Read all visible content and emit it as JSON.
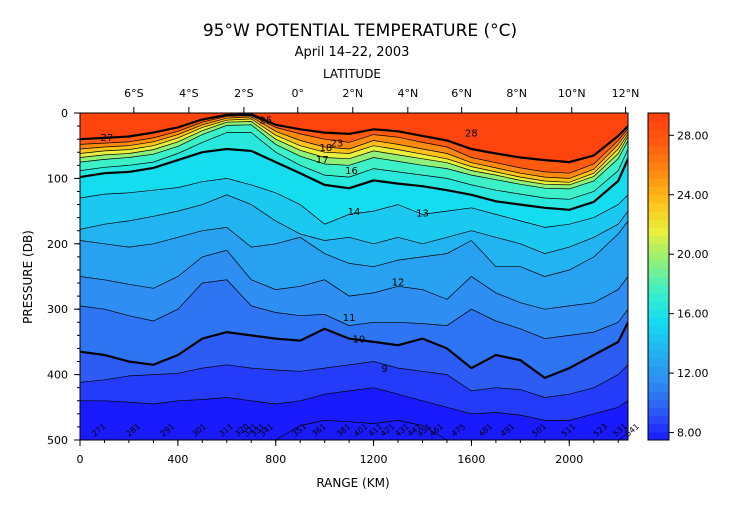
{
  "chart_data": {
    "type": "heatmap",
    "title": "95°W POTENTIAL TEMPERATURE (°C)",
    "subtitle": "April 14–22, 2003",
    "top_axis_label": "LATITUDE",
    "xlabel": "RANGE (KM)",
    "ylabel": "PRESSURE (DB)",
    "xlim": [
      0,
      2240
    ],
    "ylim": [
      500,
      0
    ],
    "x_ticks": [
      0,
      400,
      800,
      1200,
      1600,
      2000
    ],
    "y_ticks": [
      0,
      100,
      200,
      300,
      400,
      500
    ],
    "latitude_ticks": [
      {
        "label": "6°S",
        "km": 220
      },
      {
        "label": "4°S",
        "km": 445
      },
      {
        "label": "2°S",
        "km": 670
      },
      {
        "label": "0°",
        "km": 890
      },
      {
        "label": "2°N",
        "km": 1115
      },
      {
        "label": "4°N",
        "km": 1340
      },
      {
        "label": "6°N",
        "km": 1560
      },
      {
        "label": "8°N",
        "km": 1785
      },
      {
        "label": "10°N",
        "km": 2010
      },
      {
        "label": "12°N",
        "km": 2230
      }
    ],
    "colorbar": {
      "min": 7.5,
      "max": 29.5,
      "ticks": [
        "8.00",
        "12.00",
        "16.00",
        "20.00",
        "24.00",
        "28.00"
      ],
      "colors": [
        "#1a1aff",
        "#2d5cf5",
        "#2e8ef2",
        "#22b4f0",
        "#14ddf0",
        "#3cf0c8",
        "#8ff07a",
        "#e8f03c",
        "#ffc21a",
        "#ff8a10",
        "#ff5a10",
        "#ff3c0c"
      ]
    },
    "profile_km": [
      0,
      100,
      200,
      300,
      400,
      500,
      600,
      700,
      800,
      900,
      1000,
      1100,
      1200,
      1300,
      1400,
      1500,
      1600,
      1700,
      1800,
      1900,
      2000,
      2100,
      2200,
      2240
    ],
    "surface_layer": [
      {
        "temp": 28,
        "depths": [
          40,
          38,
          36,
          30,
          22,
          10,
          3,
          2,
          18,
          25,
          30,
          32,
          25,
          28,
          35,
          42,
          55,
          62,
          68,
          72,
          75,
          65,
          35,
          20
        ]
      },
      {
        "temp": 26,
        "depths": [
          48,
          46,
          44,
          38,
          28,
          14,
          5,
          4,
          22,
          32,
          40,
          45,
          33,
          37,
          45,
          52,
          68,
          76,
          84,
          90,
          92,
          78,
          42,
          24
        ]
      },
      {
        "temp": 24,
        "depths": [
          55,
          52,
          50,
          44,
          33,
          18,
          8,
          6,
          28,
          42,
          52,
          55,
          42,
          48,
          55,
          62,
          76,
          84,
          92,
          98,
          100,
          86,
          48,
          28
        ]
      },
      {
        "temp": 22,
        "depths": [
          62,
          58,
          56,
          50,
          38,
          22,
          11,
          9,
          34,
          50,
          60,
          62,
          50,
          56,
          63,
          70,
          82,
          90,
          98,
          104,
          106,
          92,
          55,
          32
        ]
      },
      {
        "temp": 20,
        "depths": [
          68,
          64,
          62,
          56,
          44,
          27,
          14,
          13,
          40,
          57,
          68,
          70,
          58,
          64,
          70,
          76,
          88,
          95,
          103,
          109,
          110,
          97,
          62,
          36
        ]
      },
      {
        "temp": 18,
        "depths": [
          75,
          71,
          68,
          63,
          51,
          33,
          19,
          18,
          48,
          66,
          78,
          80,
          68,
          74,
          80,
          85,
          95,
          102,
          109,
          115,
          116,
          104,
          70,
          42
        ]
      },
      {
        "temp": 17,
        "depths": [
          88,
          83,
          80,
          75,
          62,
          45,
          30,
          30,
          60,
          80,
          95,
          98,
          85,
          90,
          95,
          100,
          110,
          118,
          124,
          130,
          132,
          120,
          88,
          55
        ]
      },
      {
        "temp": 16,
        "depths": [
          98,
          92,
          90,
          84,
          72,
          60,
          55,
          58,
          75,
          92,
          110,
          115,
          103,
          108,
          112,
          118,
          125,
          135,
          140,
          145,
          148,
          136,
          104,
          70
        ]
      }
    ],
    "isotherms": [
      {
        "temp": 15,
        "depths": [
          130,
          124,
          122,
          118,
          114,
          105,
          100,
          110,
          122,
          140,
          170,
          155,
          150,
          140,
          155,
          150,
          145,
          155,
          165,
          175,
          170,
          160,
          140,
          125
        ]
      },
      {
        "temp": 14,
        "depths": [
          178,
          170,
          165,
          158,
          150,
          140,
          125,
          140,
          165,
          185,
          195,
          190,
          200,
          190,
          200,
          190,
          180,
          190,
          200,
          215,
          205,
          190,
          170,
          150
        ]
      },
      {
        "temp": 13,
        "depths": [
          195,
          200,
          205,
          200,
          190,
          180,
          175,
          205,
          200,
          190,
          215,
          230,
          235,
          225,
          220,
          215,
          195,
          235,
          235,
          250,
          240,
          220,
          185,
          165
        ]
      },
      {
        "temp": 12,
        "depths": [
          250,
          255,
          262,
          268,
          250,
          220,
          210,
          255,
          270,
          265,
          255,
          280,
          275,
          265,
          270,
          285,
          250,
          275,
          290,
          300,
          295,
          290,
          270,
          250
        ]
      },
      {
        "temp": 11,
        "depths": [
          295,
          300,
          310,
          318,
          300,
          260,
          255,
          295,
          305,
          310,
          308,
          325,
          320,
          320,
          322,
          325,
          300,
          318,
          330,
          345,
          340,
          335,
          320,
          300
        ]
      },
      {
        "temp": 10,
        "depths": [
          365,
          370,
          380,
          385,
          370,
          345,
          335,
          340,
          345,
          348,
          330,
          345,
          350,
          355,
          345,
          360,
          390,
          370,
          378,
          405,
          390,
          370,
          350,
          320
        ]
      },
      {
        "temp": 9,
        "depths": [
          412,
          408,
          402,
          400,
          398,
          390,
          385,
          390,
          393,
          395,
          390,
          385,
          380,
          390,
          395,
          400,
          425,
          420,
          423,
          435,
          430,
          420,
          400,
          385
        ]
      },
      {
        "temp": 8,
        "depths": [
          440,
          440,
          442,
          445,
          440,
          438,
          435,
          440,
          445,
          440,
          430,
          425,
          420,
          430,
          440,
          450,
          460,
          458,
          462,
          470,
          470,
          460,
          450,
          440
        ]
      },
      {
        "temp": 7.5,
        "depths": [
          500,
          500,
          500,
          500,
          500,
          500,
          500,
          500,
          500,
          478,
          470,
          472,
          475,
          470,
          478,
          500,
          500,
          500,
          500,
          500,
          500,
          500,
          500,
          490
        ]
      }
    ],
    "contour_labels": [
      {
        "text": "28",
        "km": 1600,
        "db": 30
      },
      {
        "text": "27",
        "km": 110,
        "db": 37
      },
      {
        "text": "25",
        "km": 760,
        "db": 10
      },
      {
        "text": "16",
        "km": 1110,
        "db": 87
      },
      {
        "text": "14",
        "km": 1120,
        "db": 150
      },
      {
        "text": "13",
        "km": 1400,
        "db": 152
      },
      {
        "text": "12",
        "km": 1300,
        "db": 258
      },
      {
        "text": "11",
        "km": 1100,
        "db": 312
      },
      {
        "text": "10",
        "km": 1140,
        "db": 345
      },
      {
        "text": "9",
        "km": 1245,
        "db": 390
      },
      {
        "text": "17",
        "km": 990,
        "db": 70
      },
      {
        "text": "18",
        "km": 1005,
        "db": 52
      },
      {
        "text": "23",
        "km": 1050,
        "db": 45
      }
    ],
    "station_labels": [
      {
        "text": "271",
        "km": 60
      },
      {
        "text": "281",
        "km": 200
      },
      {
        "text": "291",
        "km": 340
      },
      {
        "text": "301",
        "km": 470
      },
      {
        "text": "311",
        "km": 580
      },
      {
        "text": "320",
        "km": 645
      },
      {
        "text": "321",
        "km": 680
      },
      {
        "text": "331",
        "km": 710
      },
      {
        "text": "341",
        "km": 745
      },
      {
        "text": "351",
        "km": 880
      },
      {
        "text": "361",
        "km": 960
      },
      {
        "text": "381",
        "km": 1060
      },
      {
        "text": "401",
        "km": 1130
      },
      {
        "text": "411",
        "km": 1190
      },
      {
        "text": "421",
        "km": 1240
      },
      {
        "text": "431",
        "km": 1300
      },
      {
        "text": "441",
        "km": 1350
      },
      {
        "text": "451",
        "km": 1390
      },
      {
        "text": "461",
        "km": 1440
      },
      {
        "text": "475",
        "km": 1530
      },
      {
        "text": "481",
        "km": 1640
      },
      {
        "text": "491",
        "km": 1730
      },
      {
        "text": "501",
        "km": 1860
      },
      {
        "text": "511",
        "km": 1980
      },
      {
        "text": "523",
        "km": 2110
      },
      {
        "text": "531",
        "km": 2190
      },
      {
        "text": "541",
        "km": 2240
      }
    ]
  }
}
